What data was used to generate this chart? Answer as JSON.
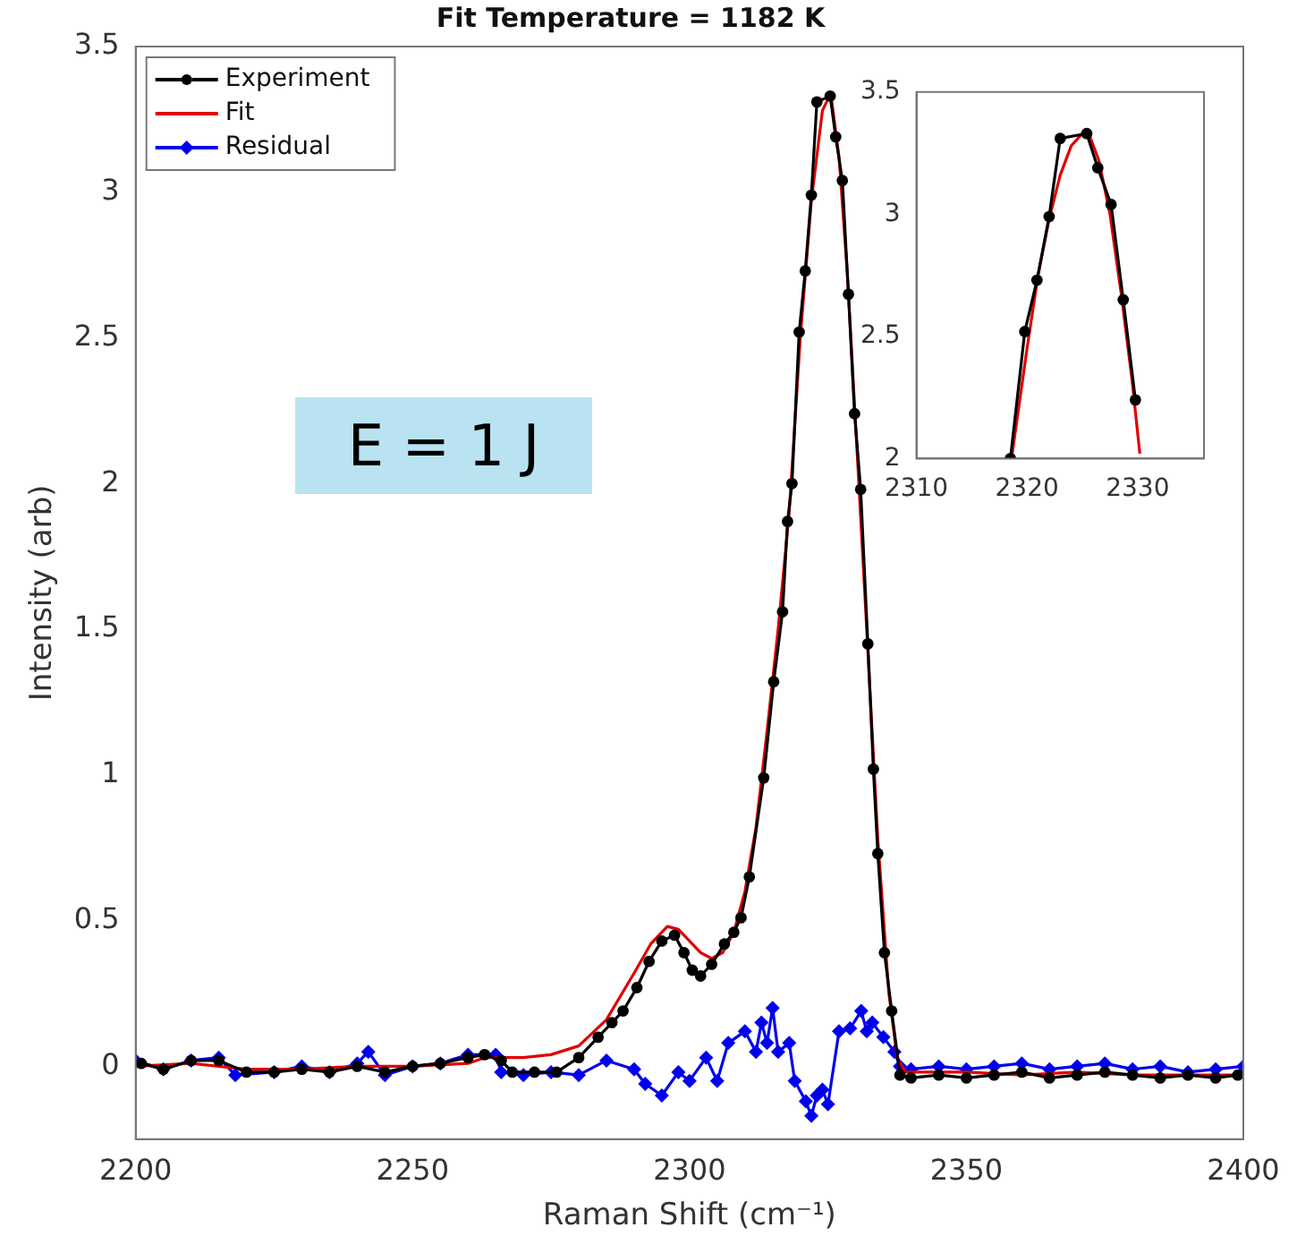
{
  "chart_data": [
    {
      "type": "line",
      "title": "Fit Temperature = 1182 K",
      "xlabel": "Raman Shift (cm⁻¹)",
      "ylabel": "Intensity (arb)",
      "annotations": [
        "E = 1 J"
      ],
      "xlim": [
        2200,
        2400
      ],
      "xticks": [
        2200,
        2250,
        2300,
        2350,
        2400
      ],
      "ylim": [
        -0.25,
        3.5
      ],
      "yticks": [
        0,
        0.5,
        1,
        1.5,
        2,
        2.5,
        3,
        3.5
      ],
      "grid": false,
      "legend": "top left",
      "line_style": "solid",
      "series": [
        {
          "name": "Experiment",
          "color": "#000000",
          "marker": "circle",
          "x": [
            2201,
            2205,
            2210,
            2215,
            2220,
            2225,
            2230,
            2235,
            2240,
            2245,
            2250,
            2255,
            2260,
            2263,
            2266,
            2268,
            2272,
            2276,
            2280,
            2283.5,
            2286,
            2288,
            2290.5,
            2292.7,
            2295,
            2297.3,
            2299,
            2300.5,
            2302,
            2304,
            2306.3,
            2308,
            2309.3,
            2310.8,
            2313.4,
            2315.2,
            2316.8,
            2317.7,
            2318.5,
            2319.8,
            2320.9,
            2322,
            2323,
            2325.4,
            2326.4,
            2327.6,
            2328.7,
            2329.8,
            2330.9,
            2332.2,
            2333.2,
            2334,
            2335.2,
            2336.5,
            2338,
            2340,
            2345,
            2350,
            2355,
            2360,
            2365,
            2370,
            2375,
            2380,
            2385,
            2390,
            2395,
            2399
          ],
          "values": [
            0.01,
            -0.01,
            0.02,
            0.02,
            -0.02,
            -0.02,
            -0.01,
            -0.02,
            0,
            -0.02,
            0,
            0.01,
            0.03,
            0.04,
            0.02,
            -0.02,
            -0.02,
            -0.02,
            0.03,
            0.1,
            0.15,
            0.19,
            0.27,
            0.36,
            0.43,
            0.45,
            0.39,
            0.33,
            0.31,
            0.35,
            0.42,
            0.46,
            0.51,
            0.65,
            0.99,
            1.32,
            1.56,
            1.87,
            2,
            2.52,
            2.73,
            2.99,
            3.31,
            3.33,
            3.19,
            3.04,
            2.65,
            2.24,
            1.98,
            1.45,
            1.02,
            0.73,
            0.39,
            0.19,
            -0.03,
            -0.04,
            -0.03,
            -0.04,
            -0.03,
            -0.02,
            -0.04,
            -0.03,
            -0.02,
            -0.03,
            -0.04,
            -0.03,
            -0.04,
            -0.03
          ]
        },
        {
          "name": "Fit",
          "color": "#e00000",
          "marker": "none",
          "x": [
            2200,
            2210,
            2220,
            2230,
            2240,
            2250,
            2260,
            2263,
            2270,
            2275,
            2280,
            2285,
            2290,
            2293,
            2296,
            2298,
            2300,
            2302,
            2304,
            2306,
            2308,
            2310,
            2312,
            2314,
            2316,
            2318,
            2320,
            2322,
            2324,
            2325.5,
            2327,
            2328.5,
            2330,
            2332,
            2334,
            2336,
            2337.5,
            2339,
            2350,
            2360,
            2370,
            2380,
            2390,
            2400
          ],
          "values": [
            0,
            0.01,
            -0.01,
            -0.01,
            0,
            0,
            0.01,
            0.03,
            0.03,
            0.04,
            0.07,
            0.16,
            0.32,
            0.42,
            0.48,
            0.47,
            0.43,
            0.39,
            0.37,
            0.39,
            0.46,
            0.6,
            0.82,
            1.15,
            1.5,
            1.9,
            2.5,
            2.97,
            3.28,
            3.34,
            3.12,
            2.72,
            2.2,
            1.5,
            0.78,
            0.25,
            0.03,
            -0.02,
            -0.02,
            -0.03,
            -0.02,
            -0.03,
            -0.03,
            -0.03
          ]
        },
        {
          "name": "Residual",
          "color": "#0000ee",
          "marker": "diamond",
          "x": [
            2200,
            2205,
            2210,
            2215,
            2218,
            2225,
            2230,
            2235,
            2240,
            2242,
            2245,
            2250,
            2255,
            2260,
            2265,
            2266,
            2270,
            2275,
            2280,
            2285,
            2290,
            2292,
            2295,
            2298,
            2300,
            2303,
            2305,
            2307,
            2310,
            2312,
            2313,
            2314,
            2315,
            2316,
            2318,
            2319,
            2321,
            2322,
            2323,
            2324,
            2325,
            2327,
            2329,
            2331,
            2332,
            2333,
            2335,
            2337,
            2338,
            2340,
            2345,
            2350,
            2355,
            2360,
            2365,
            2370,
            2375,
            2380,
            2385,
            2390,
            2395,
            2400
          ],
          "values": [
            0.02,
            -0.01,
            0.02,
            0.03,
            -0.03,
            -0.02,
            0,
            -0.02,
            0.01,
            0.05,
            -0.03,
            0,
            0.01,
            0.04,
            0.04,
            -0.02,
            -0.03,
            -0.02,
            -0.03,
            0.02,
            -0.01,
            -0.06,
            -0.1,
            -0.02,
            -0.05,
            0.03,
            -0.05,
            0.08,
            0.12,
            0.05,
            0.15,
            0.08,
            0.2,
            0.05,
            0.08,
            -0.05,
            -0.12,
            -0.17,
            -0.1,
            -0.08,
            -0.13,
            0.12,
            0.13,
            0.19,
            0.12,
            0.15,
            0.1,
            0.05,
            0,
            -0.01,
            0,
            -0.01,
            0,
            0.01,
            -0.01,
            0,
            0.01,
            -0.01,
            0,
            -0.02,
            -0.01,
            0
          ]
        }
      ]
    },
    {
      "type": "line",
      "xlim": [
        2310,
        2336
      ],
      "xticks": [
        2310,
        2320,
        2330
      ],
      "ylim": [
        2,
        3.5
      ],
      "yticks": [
        2,
        2.5,
        3,
        3.5
      ],
      "grid": false,
      "line_style": "solid",
      "series": [
        {
          "color": "#000000",
          "marker": "circle",
          "x": [
            2318.5,
            2319.8,
            2320.9,
            2322,
            2323,
            2325.4,
            2326.4,
            2327.6,
            2328.7,
            2329.8
          ],
          "values": [
            2,
            2.52,
            2.73,
            2.99,
            3.31,
            3.33,
            3.19,
            3.04,
            2.65,
            2.24
          ]
        },
        {
          "color": "#e00000",
          "marker": "none",
          "x": [
            2318.6,
            2320,
            2321,
            2322,
            2323,
            2324,
            2325,
            2325.5,
            2326.5,
            2327.5,
            2328.5,
            2329.5,
            2330.2
          ],
          "values": [
            2,
            2.45,
            2.75,
            2.98,
            3.16,
            3.28,
            3.33,
            3.34,
            3.22,
            3.0,
            2.68,
            2.32,
            2.02
          ]
        }
      ]
    }
  ]
}
